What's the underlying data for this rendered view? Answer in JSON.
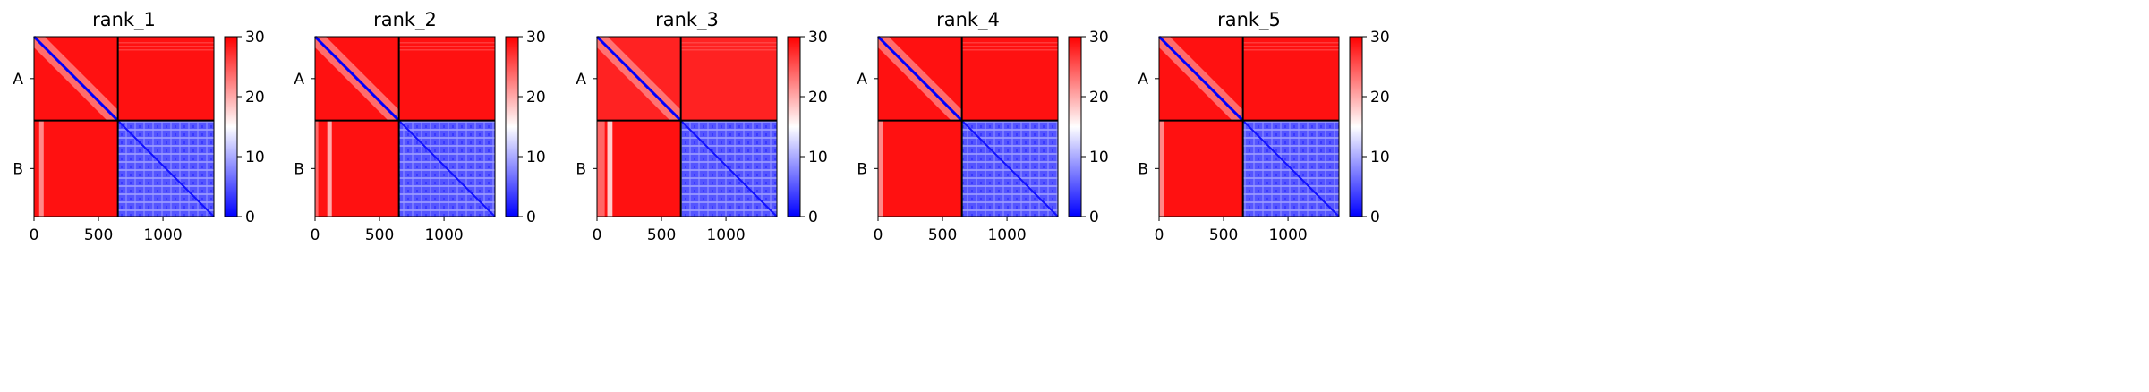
{
  "figure": {
    "colormap": {
      "low": "#0000ff",
      "mid": "#ffffff",
      "high": "#ff0000"
    }
  },
  "chart_data": [
    {
      "type": "heatmap",
      "title": "rank_1",
      "xlabel": "",
      "ylabel": "",
      "chain_labels": [
        "A",
        "B"
      ],
      "chain_boundary": 650,
      "xlim": [
        0,
        1395
      ],
      "x_ticks": [
        0,
        500,
        1000
      ],
      "x_tick_labels": [
        "0",
        "500",
        "1000"
      ],
      "colorbar": {
        "range": [
          0,
          30
        ],
        "ticks": [
          0,
          10,
          20,
          30
        ],
        "tick_labels": [
          "0",
          "10",
          "20",
          "30"
        ]
      },
      "approx_values": {
        "A_A_offdiag": 29,
        "A_B": 29,
        "B_A": 29,
        "B_B": 6,
        "diagonal": 0
      },
      "bright_stripes_in_B_A": [
        {
          "x_from": 40,
          "x_to": 75,
          "value": 22
        }
      ]
    },
    {
      "type": "heatmap",
      "title": "rank_2",
      "xlabel": "",
      "ylabel": "",
      "chain_labels": [
        "A",
        "B"
      ],
      "chain_boundary": 650,
      "xlim": [
        0,
        1395
      ],
      "x_ticks": [
        0,
        500,
        1000
      ],
      "x_tick_labels": [
        "0",
        "500",
        "1000"
      ],
      "colorbar": {
        "range": [
          0,
          30
        ],
        "ticks": [
          0,
          10,
          20,
          30
        ],
        "tick_labels": [
          "0",
          "10",
          "20",
          "30"
        ]
      },
      "approx_values": {
        "A_A_offdiag": 29,
        "A_B": 29,
        "B_A": 29,
        "B_B": 6,
        "diagonal": 0
      },
      "bright_stripes_in_B_A": [
        {
          "x_from": 0,
          "x_to": 25,
          "value": 24
        },
        {
          "x_from": 95,
          "x_to": 130,
          "value": 20
        }
      ]
    },
    {
      "type": "heatmap",
      "title": "rank_3",
      "xlabel": "",
      "ylabel": "",
      "chain_labels": [
        "A",
        "B"
      ],
      "chain_boundary": 650,
      "xlim": [
        0,
        1395
      ],
      "x_ticks": [
        0,
        500,
        1000
      ],
      "x_tick_labels": [
        "0",
        "500",
        "1000"
      ],
      "colorbar": {
        "range": [
          0,
          30
        ],
        "ticks": [
          0,
          10,
          20,
          30
        ],
        "tick_labels": [
          "0",
          "10",
          "20",
          "30"
        ]
      },
      "approx_values": {
        "A_A_offdiag": 28,
        "A_B": 28,
        "B_A": 29,
        "B_B": 6,
        "diagonal": 0
      },
      "bright_stripes_in_B_A": [
        {
          "x_from": 0,
          "x_to": 60,
          "value": 24
        },
        {
          "x_from": 80,
          "x_to": 120,
          "value": 18
        }
      ]
    },
    {
      "type": "heatmap",
      "title": "rank_4",
      "xlabel": "",
      "ylabel": "",
      "chain_labels": [
        "A",
        "B"
      ],
      "chain_boundary": 650,
      "xlim": [
        0,
        1395
      ],
      "x_ticks": [
        0,
        500,
        1000
      ],
      "x_tick_labels": [
        "0",
        "500",
        "1000"
      ],
      "colorbar": {
        "range": [
          0,
          30
        ],
        "ticks": [
          0,
          10,
          20,
          30
        ],
        "tick_labels": [
          "0",
          "10",
          "20",
          "30"
        ]
      },
      "approx_values": {
        "A_A_offdiag": 29,
        "A_B": 29,
        "B_A": 29,
        "B_B": 6,
        "diagonal": 0
      },
      "bright_stripes_in_B_A": [
        {
          "x_from": 0,
          "x_to": 40,
          "value": 22
        }
      ]
    },
    {
      "type": "heatmap",
      "title": "rank_5",
      "xlabel": "",
      "ylabel": "",
      "chain_labels": [
        "A",
        "B"
      ],
      "chain_boundary": 650,
      "xlim": [
        0,
        1395
      ],
      "x_ticks": [
        0,
        500,
        1000
      ],
      "x_tick_labels": [
        "0",
        "500",
        "1000"
      ],
      "colorbar": {
        "range": [
          0,
          30
        ],
        "ticks": [
          0,
          10,
          20,
          30
        ],
        "tick_labels": [
          "0",
          "10",
          "20",
          "30"
        ]
      },
      "approx_values": {
        "A_A_offdiag": 29,
        "A_B": 29,
        "B_A": 29,
        "B_B": 6,
        "diagonal": 0
      },
      "bright_stripes_in_B_A": [
        {
          "x_from": 0,
          "x_to": 40,
          "value": 22
        }
      ]
    }
  ]
}
